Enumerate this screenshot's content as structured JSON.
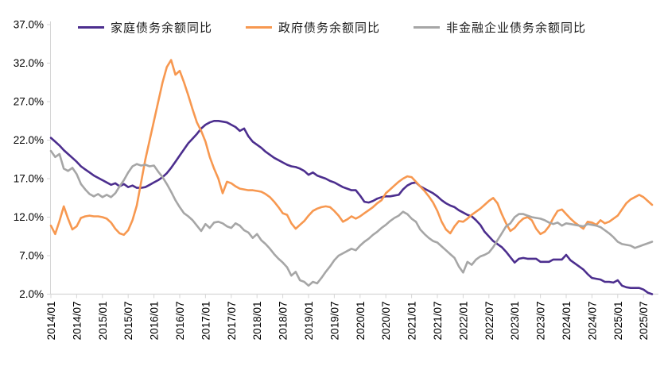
{
  "page": {
    "background": "#FFFFFF"
  },
  "chart_data": {
    "type": "line",
    "title": "",
    "legend_position": "top",
    "grid": false,
    "axis_color": "#D6D6D6",
    "label_color": "#000000",
    "x_start": "2014/01",
    "x_end": "2025/09",
    "x_tick_every_months": 6,
    "x_tick_labels": [
      "2014/01",
      "2014/07",
      "2015/01",
      "2015/07",
      "2016/01",
      "2016/07",
      "2017/01",
      "2017/07",
      "2018/01",
      "2018/07",
      "2019/01",
      "2019/07",
      "2020/01",
      "2020/07",
      "2021/01",
      "2021/07",
      "2022/01",
      "2022/07",
      "2023/01",
      "2023/07",
      "2024/01",
      "2024/07",
      "2025/01",
      "2025/07"
    ],
    "y_axis": {
      "min": 2,
      "max": 37,
      "tick_step": 5,
      "tick_labels": [
        "2.0%",
        "7.0%",
        "12.0%",
        "17.0%",
        "22.0%",
        "27.0%",
        "32.0%",
        "37.0%"
      ]
    },
    "series": [
      {
        "name": "家庭债务余额同比",
        "color": "#4C2E8E",
        "values": [
          22.3,
          21.8,
          21.3,
          20.7,
          20.2,
          19.7,
          19.2,
          18.6,
          18.2,
          17.8,
          17.4,
          17.1,
          16.8,
          16.5,
          16.2,
          16.4,
          16.0,
          16.3,
          15.9,
          16.1,
          15.8,
          15.8,
          15.9,
          16.2,
          16.5,
          16.8,
          17.2,
          17.7,
          18.4,
          19.2,
          20.0,
          20.8,
          21.6,
          22.2,
          22.8,
          23.5,
          24.0,
          24.3,
          24.5,
          24.5,
          24.4,
          24.3,
          24.0,
          23.7,
          23.2,
          23.5,
          22.5,
          21.8,
          21.4,
          21.0,
          20.5,
          20.1,
          19.7,
          19.4,
          19.1,
          18.8,
          18.6,
          18.5,
          18.3,
          18.0,
          17.5,
          17.8,
          17.4,
          17.2,
          17.0,
          16.7,
          16.5,
          16.2,
          15.9,
          15.7,
          15.5,
          15.5,
          14.8,
          14.0,
          13.9,
          14.1,
          14.4,
          14.6,
          14.7,
          14.7,
          14.8,
          14.9,
          15.6,
          16.1,
          16.4,
          16.5,
          16.0,
          15.7,
          15.4,
          15.1,
          14.7,
          14.2,
          13.8,
          13.5,
          13.3,
          12.9,
          12.6,
          12.3,
          12.1,
          11.6,
          11.0,
          10.1,
          9.5,
          8.9,
          8.5,
          8.1,
          7.5,
          6.8,
          6.1,
          6.6,
          6.7,
          6.6,
          6.6,
          6.6,
          6.2,
          6.2,
          6.2,
          6.5,
          6.5,
          6.5,
          7.1,
          6.4,
          6.0,
          5.6,
          5.2,
          4.6,
          4.1,
          4.0,
          3.9,
          3.6,
          3.6,
          3.5,
          3.8,
          3.1,
          2.9,
          2.8,
          2.8,
          2.8,
          2.6,
          2.2,
          2.0
        ]
      },
      {
        "name": "政府债务余额同比",
        "color": "#F79850",
        "values": [
          10.9,
          9.8,
          11.5,
          13.4,
          11.8,
          10.4,
          10.8,
          11.9,
          12.1,
          12.2,
          12.1,
          12.1,
          12.0,
          11.8,
          11.3,
          10.5,
          9.9,
          9.7,
          10.3,
          11.6,
          13.5,
          16.5,
          19.5,
          22.0,
          24.5,
          27.0,
          29.5,
          31.5,
          32.4,
          30.5,
          31.0,
          29.5,
          27.8,
          26.0,
          24.3,
          23.2,
          21.8,
          19.8,
          18.3,
          17.0,
          15.1,
          16.6,
          16.4,
          16.0,
          15.7,
          15.6,
          15.5,
          15.5,
          15.4,
          15.3,
          15.0,
          14.6,
          14.0,
          13.3,
          12.5,
          12.3,
          11.2,
          10.5,
          11.0,
          11.5,
          12.2,
          12.8,
          13.1,
          13.3,
          13.4,
          13.3,
          12.8,
          12.2,
          11.4,
          11.7,
          12.1,
          11.8,
          12.1,
          12.5,
          12.9,
          13.3,
          13.8,
          14.2,
          15.1,
          15.6,
          16.1,
          16.6,
          17.0,
          17.3,
          17.2,
          16.6,
          16.0,
          15.4,
          14.7,
          13.9,
          12.8,
          11.4,
          10.4,
          9.9,
          10.8,
          11.5,
          11.4,
          11.8,
          12.3,
          12.7,
          13.1,
          13.6,
          14.1,
          14.5,
          13.8,
          12.4,
          11.2,
          10.2,
          10.6,
          11.3,
          11.8,
          12.0,
          11.6,
          10.5,
          9.8,
          10.1,
          10.8,
          11.9,
          12.8,
          13.0,
          12.4,
          11.8,
          11.3,
          10.9,
          10.5,
          11.4,
          11.3,
          11.0,
          11.6,
          11.2,
          11.4,
          11.8,
          12.2,
          13.0,
          13.8,
          14.3,
          14.6,
          14.9,
          14.6,
          14.1,
          13.6
        ]
      },
      {
        "name": "非金融企业债务余额同比",
        "color": "#A6A6A6",
        "values": [
          20.6,
          19.8,
          20.2,
          18.3,
          18.0,
          18.4,
          17.6,
          16.3,
          15.6,
          15.0,
          14.7,
          15.0,
          14.6,
          14.9,
          14.6,
          15.1,
          16.0,
          16.8,
          17.8,
          18.6,
          18.9,
          18.7,
          18.8,
          18.6,
          18.7,
          17.9,
          17.2,
          16.3,
          15.3,
          14.2,
          13.3,
          12.5,
          12.1,
          11.6,
          10.9,
          10.2,
          11.1,
          10.6,
          11.3,
          11.4,
          11.2,
          10.8,
          10.6,
          11.2,
          10.9,
          10.3,
          10.0,
          9.3,
          9.8,
          9.0,
          8.5,
          7.9,
          7.2,
          6.6,
          6.1,
          5.5,
          4.4,
          4.9,
          3.8,
          3.6,
          3.1,
          3.6,
          3.4,
          4.1,
          4.9,
          5.6,
          6.4,
          7.0,
          7.3,
          7.6,
          7.9,
          7.7,
          8.3,
          8.8,
          9.2,
          9.7,
          10.1,
          10.6,
          11.0,
          11.5,
          11.9,
          12.2,
          12.7,
          12.4,
          11.8,
          11.4,
          10.4,
          9.8,
          9.3,
          8.9,
          8.7,
          8.2,
          7.7,
          7.2,
          6.7,
          5.6,
          4.8,
          6.2,
          5.8,
          6.5,
          6.9,
          7.1,
          7.4,
          8.1,
          9.0,
          9.9,
          10.8,
          11.2,
          12.0,
          12.4,
          12.4,
          12.2,
          12.0,
          11.9,
          11.8,
          11.6,
          11.3,
          11.1,
          11.3,
          10.9,
          11.2,
          11.1,
          11.0,
          10.9,
          10.8,
          11.1,
          11.0,
          10.9,
          10.7,
          10.3,
          9.9,
          9.4,
          8.8,
          8.5,
          8.4,
          8.3,
          8.0,
          8.2,
          8.4,
          8.6,
          8.8
        ]
      }
    ]
  }
}
